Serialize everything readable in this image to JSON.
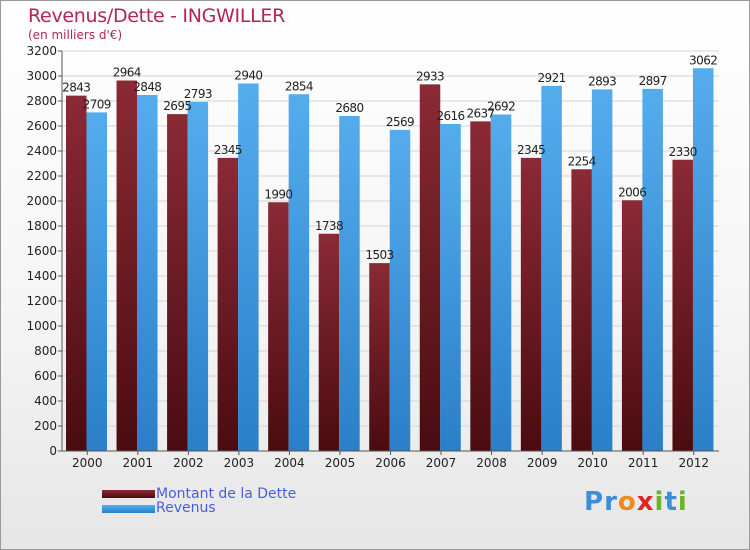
{
  "title": "Revenus/Dette - INGWILLER",
  "subtitle": "(en milliers d'€)",
  "legend": {
    "dette_label": "Montant de la Dette",
    "revenus_label": "Revenus"
  },
  "logo": {
    "text": "Proxiti",
    "letters": [
      "P",
      "r",
      "o",
      "x",
      "i",
      "t",
      "i"
    ],
    "letter_colors": [
      "#3b8fd8",
      "#3b8fd8",
      "#f08a1c",
      "#e02424",
      "#6cb32b",
      "#3b8fd8",
      "#6cb32b"
    ]
  },
  "colors": {
    "dette": "#7a1e2a",
    "dette_dark": "#4a0c10",
    "revenus": "#4da6e8",
    "revenus_dark": "#2a7fc8",
    "title": "#b2245a",
    "legend_text": "#4a5de0"
  },
  "chart_data": {
    "type": "bar",
    "title": "Revenus/Dette - INGWILLER",
    "ylabel": "(en milliers d'€)",
    "xlabel": "",
    "ylim": [
      0,
      3200
    ],
    "ytick_step": 200,
    "grid": true,
    "legend_position": "bottom-left",
    "categories": [
      "2000",
      "2001",
      "2002",
      "2003",
      "2004",
      "2005",
      "2006",
      "2007",
      "2008",
      "2009",
      "2010",
      "2011",
      "2012"
    ],
    "series": [
      {
        "name": "Montant de la Dette",
        "values": [
          2843,
          2964,
          2695,
          2345,
          1990,
          1738,
          1503,
          2933,
          2637,
          2345,
          2254,
          2006,
          2330
        ]
      },
      {
        "name": "Revenus",
        "values": [
          2709,
          2848,
          2793,
          2940,
          2854,
          2680,
          2569,
          2616,
          2692,
          2921,
          2893,
          2897,
          3062
        ]
      }
    ]
  }
}
